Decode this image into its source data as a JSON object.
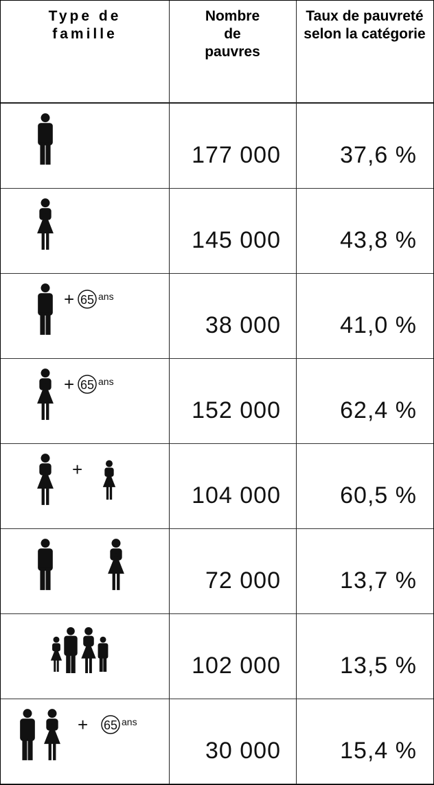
{
  "header": {
    "columns": [
      "Type de famille",
      "Nombre de pauvres",
      "Taux de pauvreté selon la catégorie"
    ]
  },
  "table": {
    "rows": [
      {
        "count": "177 000",
        "rate": "37,6 %"
      },
      {
        "count": "145 000",
        "rate": "43,8 %"
      },
      {
        "plus": "+",
        "age": "65",
        "age_unit": "ans",
        "count": "38 000",
        "rate": "41,0 %"
      },
      {
        "plus": "+",
        "age": "65",
        "age_unit": "ans",
        "count": "152 000",
        "rate": "62,4 %"
      },
      {
        "plus": "+",
        "count": "104 000",
        "rate": "60,5 %"
      },
      {
        "count": "72 000",
        "rate": "13,7 %"
      },
      {
        "count": "102 000",
        "rate": "13,5 %"
      },
      {
        "plus": "+",
        "age": "65",
        "age_unit": "ans",
        "count": "30 000",
        "rate": "15,4 %"
      }
    ]
  }
}
